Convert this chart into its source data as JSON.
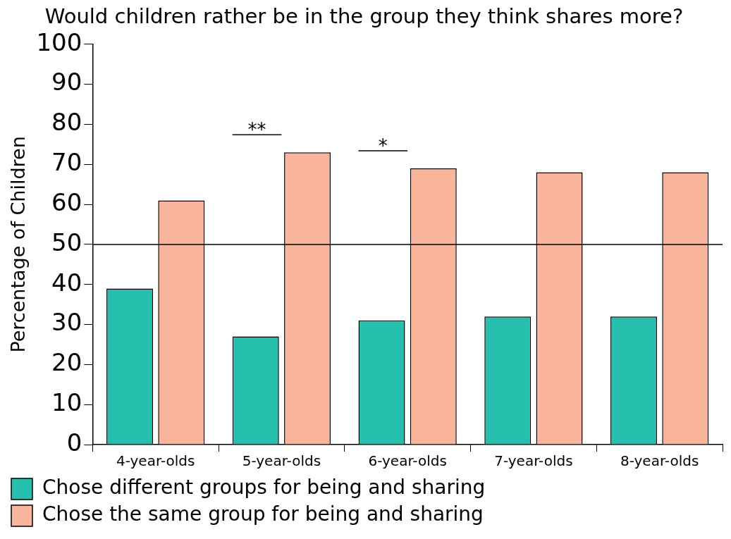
{
  "chart_data": {
    "type": "bar",
    "title": "Would children rather be in the group they think shares more?",
    "ylabel": "Percentage of Children",
    "categories": [
      "4-year-olds",
      "5-year-olds",
      "6-year-olds",
      "7-year-olds",
      "8-year-olds"
    ],
    "series": [
      {
        "name": "Chose different groups for being and sharing",
        "color": "#26bfae",
        "values": [
          39,
          27,
          31,
          32,
          32
        ]
      },
      {
        "name": "Chose the same group for being and sharing",
        "color": "#f9b59b",
        "values": [
          61,
          73,
          69,
          68,
          68
        ]
      }
    ],
    "ylim": [
      0,
      100
    ],
    "yticks": [
      0,
      10,
      20,
      30,
      40,
      50,
      60,
      70,
      80,
      90,
      100
    ],
    "grid": false,
    "legend": "bottom",
    "ref_lines": [
      {
        "axis": "y",
        "value": 50
      }
    ],
    "annotations": [
      "**",
      "*"
    ]
  }
}
